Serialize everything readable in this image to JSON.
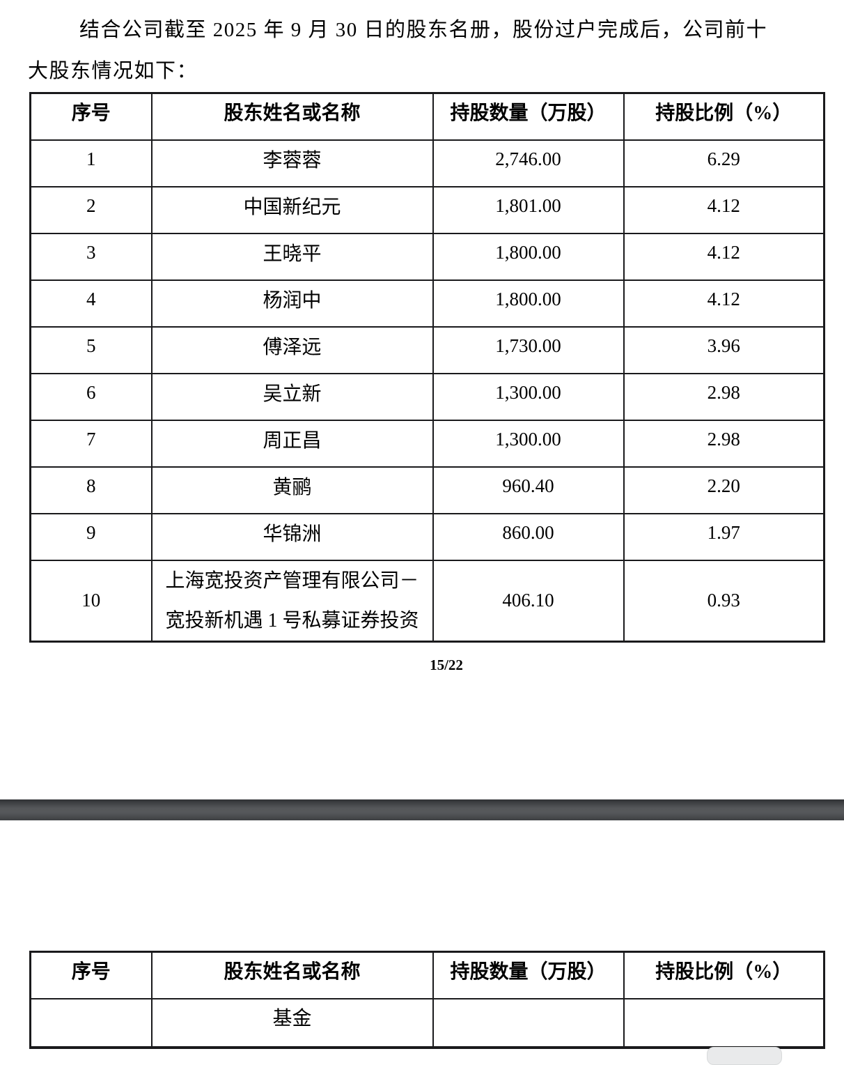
{
  "intro": {
    "line1": "结合公司截至 2025 年 9 月 30 日的股东名册，股份过户完成后，公司前十",
    "line2": "大股东情况如下："
  },
  "table_headers": [
    "序号",
    "股东姓名或名称",
    "持股数量（万股）",
    "持股比例（%）"
  ],
  "table1": {
    "rows": [
      {
        "no": "1",
        "name": "李蓉蓉",
        "shares": "2,746.00",
        "pct": "6.29"
      },
      {
        "no": "2",
        "name": "中国新纪元",
        "shares": "1,801.00",
        "pct": "4.12"
      },
      {
        "no": "3",
        "name": "王晓平",
        "shares": "1,800.00",
        "pct": "4.12"
      },
      {
        "no": "4",
        "name": "杨润中",
        "shares": "1,800.00",
        "pct": "4.12"
      },
      {
        "no": "5",
        "name": "傅泽远",
        "shares": "1,730.00",
        "pct": "3.96"
      },
      {
        "no": "6",
        "name": "吴立新",
        "shares": "1,300.00",
        "pct": "2.98"
      },
      {
        "no": "7",
        "name": "周正昌",
        "shares": "1,300.00",
        "pct": "2.98"
      },
      {
        "no": "8",
        "name": "黄鹂",
        "shares": "960.40",
        "pct": "2.20"
      },
      {
        "no": "9",
        "name": "华锦洲",
        "shares": "860.00",
        "pct": "1.97"
      },
      {
        "no": "10",
        "name_lines": [
          "上海宽投资产管理有限公司－",
          "宽投新机遇 1 号私募证券投资"
        ],
        "shares": "406.10",
        "pct": "0.93"
      }
    ]
  },
  "page_indicator": "15/22",
  "table2": {
    "rows": [
      {
        "no": "",
        "name": "基金",
        "shares": "",
        "pct": ""
      }
    ]
  },
  "colors": {
    "table_border": "#1a1a1c",
    "separator_top": "#303235",
    "separator_middle": "#56585b",
    "separator_bottom": "#3e4043",
    "scroll_thumb_fill": "#e9eaeb",
    "scroll_thumb_border": "#d8dadb"
  }
}
